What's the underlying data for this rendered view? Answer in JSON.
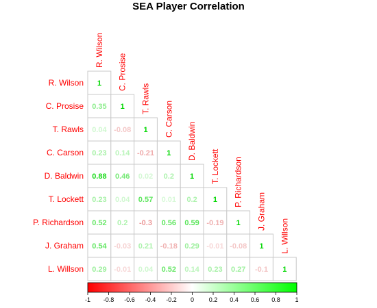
{
  "chart_data": {
    "type": "heatmap",
    "title": "SEA Player Correlation",
    "players": [
      "R. Wilson",
      "C. Prosise",
      "T. Rawls",
      "C. Carson",
      "D. Baldwin",
      "T. Lockett",
      "P. Richardson",
      "J. Graham",
      "L. Willson"
    ],
    "matrix": [
      [
        1
      ],
      [
        0.35,
        1
      ],
      [
        0.04,
        -0.08,
        1
      ],
      [
        0.23,
        0.14,
        -0.21,
        1
      ],
      [
        0.88,
        0.46,
        0.02,
        0.2,
        1
      ],
      [
        0.23,
        0.04,
        0.57,
        0.01,
        0.2,
        1
      ],
      [
        0.52,
        0.2,
        -0.3,
        0.56,
        0.59,
        -0.19,
        1
      ],
      [
        0.54,
        -0.03,
        0.21,
        -0.18,
        0.29,
        -0.01,
        -0.08,
        1
      ],
      [
        0.29,
        -0.01,
        0.04,
        0.52,
        0.14,
        0.23,
        0.27,
        -0.1,
        1
      ]
    ],
    "layout": "lower-triangle",
    "colorscale": {
      "low": "#ff0000",
      "mid": "#ffffff",
      "high": "#00ff00",
      "range": [
        -1,
        1
      ]
    },
    "colorbar_ticks": [
      "-1",
      "-0.8",
      "-0.6",
      "-0.4",
      "-0.2",
      "0",
      "0.2",
      "0.4",
      "0.6",
      "0.8",
      "1"
    ],
    "label_color": "#ff0000",
    "grid": true
  }
}
